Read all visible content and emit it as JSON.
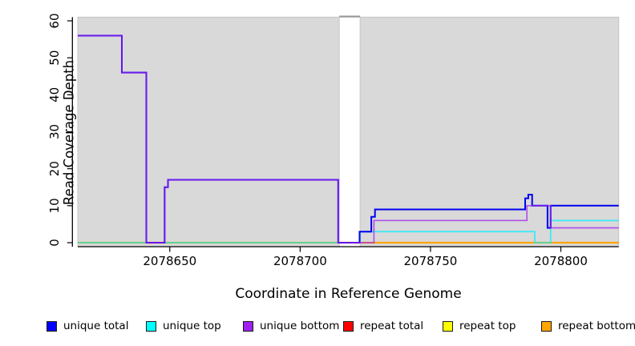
{
  "chart_data": {
    "type": "line",
    "subtype": "step-coverage",
    "title": "",
    "xlabel": "Coordinate in Reference Genome",
    "ylabel": "Read Coverage Depth",
    "xlim": [
      2078614.7,
      2078822.2
    ],
    "ylim": [
      0,
      61
    ],
    "x_ticks": [
      "2078650",
      "2078700",
      "2078750",
      "2078800"
    ],
    "x_tick_values": [
      2078650,
      2078700,
      2078750,
      2078800
    ],
    "y_ticks": [
      "0",
      "10",
      "20",
      "30",
      "40",
      "50",
      "60"
    ],
    "y_tick_values": [
      0,
      10,
      20,
      30,
      40,
      50,
      60
    ],
    "grid": false,
    "legend_position": "bottom",
    "background_color": "#ffffff",
    "shaded_region_color": "#d9d9d9",
    "shaded_region_border": "#c4c4c4",
    "gap_top_bar_color": "#999999",
    "shaded_regions": [
      {
        "name": "covered-region-left",
        "start": 2078614.7,
        "end": 2078715
      },
      {
        "name": "covered-region-right",
        "start": 2078723,
        "end": 2078822.2
      }
    ],
    "gap_region": {
      "start": 2078715,
      "end": 2078723
    },
    "series": [
      {
        "name": "repeat total",
        "color": "#FF0000",
        "opacity": 1,
        "width": 1.6,
        "points": [
          [
            2078614.7,
            0
          ]
        ]
      },
      {
        "name": "repeat top",
        "color": "#FFFF00",
        "opacity": 1,
        "width": 1.6,
        "points": [
          [
            2078614.7,
            0
          ]
        ]
      },
      {
        "name": "repeat bottom",
        "color": "#FFA500",
        "opacity": 1,
        "width": 2.2,
        "points": [
          [
            2078614.7,
            0
          ]
        ]
      },
      {
        "name": "unique top",
        "color": "#00F0FF",
        "opacity": 0.7,
        "width": 1.8,
        "points": [
          [
            2078614.7,
            0
          ],
          [
            2078723,
            3
          ],
          [
            2078790,
            0
          ],
          [
            2078796.1,
            6
          ]
        ]
      },
      {
        "name": "unique total",
        "color": "#0000EE",
        "opacity": 1,
        "width": 2,
        "points": [
          [
            2078614.7,
            56
          ],
          [
            2078631.6,
            46
          ],
          [
            2078641,
            0
          ],
          [
            2078648,
            15
          ],
          [
            2078649.3,
            17
          ],
          [
            2078714.6,
            0
          ],
          [
            2078722.8,
            3
          ],
          [
            2078727.3,
            7
          ],
          [
            2078728.7,
            9
          ],
          [
            2078786.3,
            12
          ],
          [
            2078787.5,
            13
          ],
          [
            2078789,
            10
          ],
          [
            2078794.9,
            4
          ],
          [
            2078796.1,
            10
          ]
        ]
      },
      {
        "name": "unique bottom",
        "color": "#A020F0",
        "opacity": 0.72,
        "width": 1.7,
        "points": [
          [
            2078614.7,
            56
          ],
          [
            2078631.6,
            46
          ],
          [
            2078641,
            0
          ],
          [
            2078648,
            15
          ],
          [
            2078649.3,
            17
          ],
          [
            2078714.6,
            0
          ],
          [
            2078728.3,
            6
          ],
          [
            2078787,
            10
          ],
          [
            2078796.1,
            4
          ]
        ]
      }
    ],
    "legend": [
      {
        "label": "unique total",
        "color": "#0000FF"
      },
      {
        "label": "unique top",
        "color": "#00FFFF"
      },
      {
        "label": "unique bottom",
        "color": "#A020F0"
      },
      {
        "label": "repeat total",
        "color": "#FF0000"
      },
      {
        "label": "repeat top",
        "color": "#FFFF00"
      },
      {
        "label": "repeat bottom",
        "color": "#FFA500"
      }
    ]
  }
}
